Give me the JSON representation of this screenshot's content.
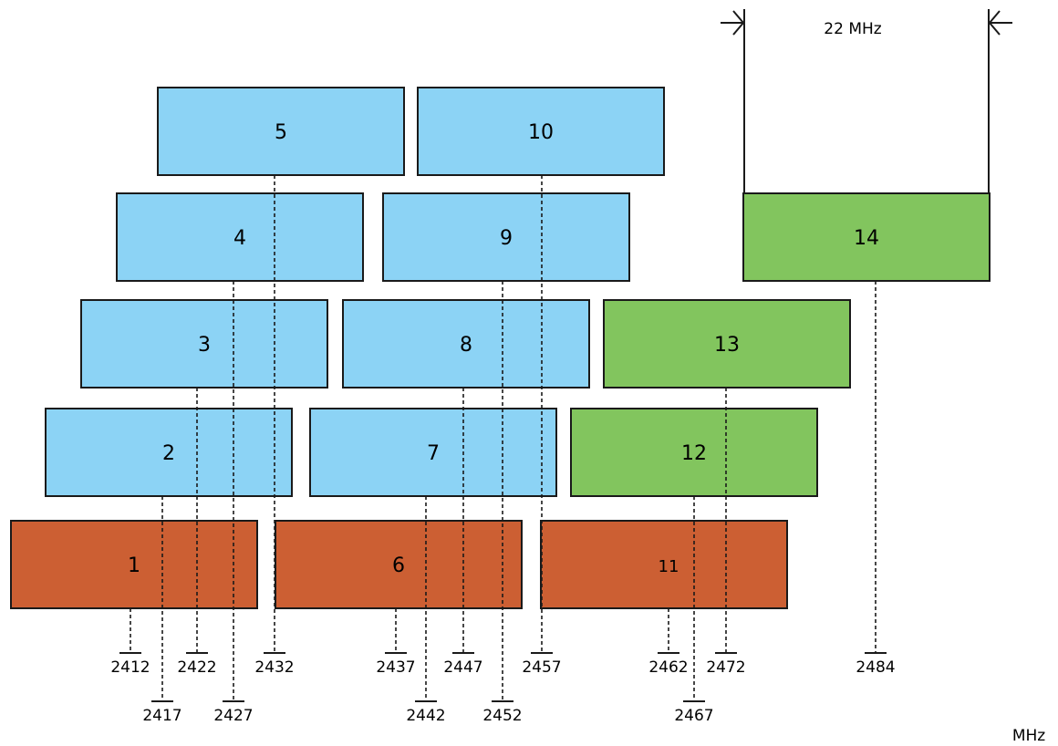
{
  "colors": {
    "orange": "#CC5F33",
    "blue": "#8CD3F5",
    "green": "#82C55E",
    "stroke": "#1A1A1A"
  },
  "unit": "MHz",
  "channel_width_label": "22 MHz",
  "channels": [
    {
      "id": "1",
      "freq": "2412",
      "color": "orange"
    },
    {
      "id": "2",
      "freq": "2417",
      "color": "blue"
    },
    {
      "id": "3",
      "freq": "2422",
      "color": "blue"
    },
    {
      "id": "4",
      "freq": "2427",
      "color": "blue"
    },
    {
      "id": "5",
      "freq": "2432",
      "color": "blue"
    },
    {
      "id": "6",
      "freq": "2437",
      "color": "orange"
    },
    {
      "id": "7",
      "freq": "2442",
      "color": "blue"
    },
    {
      "id": "8",
      "freq": "2447",
      "color": "blue"
    },
    {
      "id": "9",
      "freq": "2452",
      "color": "blue"
    },
    {
      "id": "10",
      "freq": "2457",
      "color": "blue"
    },
    {
      "id": "11",
      "freq": "2462",
      "color": "orange"
    },
    {
      "id": "12",
      "freq": "2467",
      "color": "green"
    },
    {
      "id": "13",
      "freq": "2472",
      "color": "green"
    },
    {
      "id": "14",
      "freq": "2484",
      "color": "green"
    }
  ]
}
